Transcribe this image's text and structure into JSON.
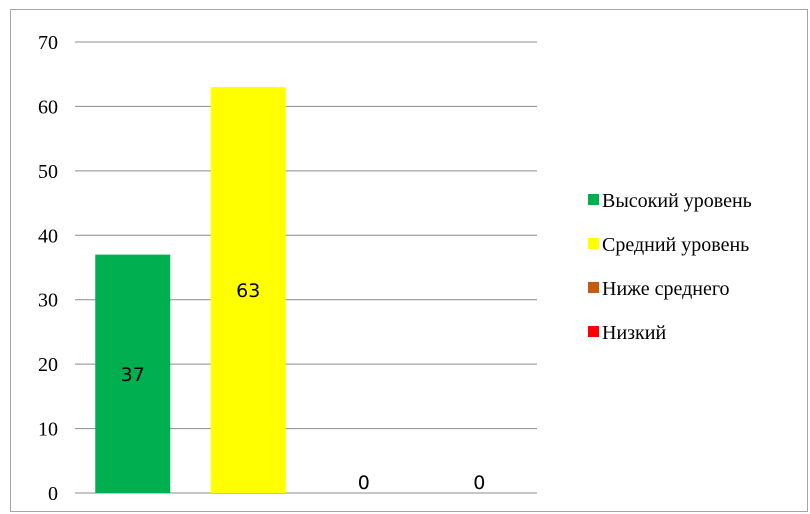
{
  "chart_data": {
    "type": "bar",
    "categories": [
      "Высокий уровень",
      "Средний уровень",
      "Ниже среднего",
      "Низкий"
    ],
    "values": [
      37,
      63,
      0,
      0
    ],
    "colors": [
      "#00b050",
      "#ffff00",
      "#c55a11",
      "#ff0000"
    ],
    "data_labels": [
      "37",
      "63",
      "0",
      "0"
    ],
    "ylim": [
      0,
      70
    ],
    "yticks": [
      "0",
      "10",
      "20",
      "30",
      "40",
      "50",
      "60",
      "70"
    ],
    "grid": true,
    "legend": {
      "position": "right",
      "entries": [
        "Высокий уровень",
        "Средний уровень",
        "Ниже среднего",
        "Низкий"
      ]
    },
    "title": "",
    "xlabel": "",
    "ylabel": ""
  }
}
